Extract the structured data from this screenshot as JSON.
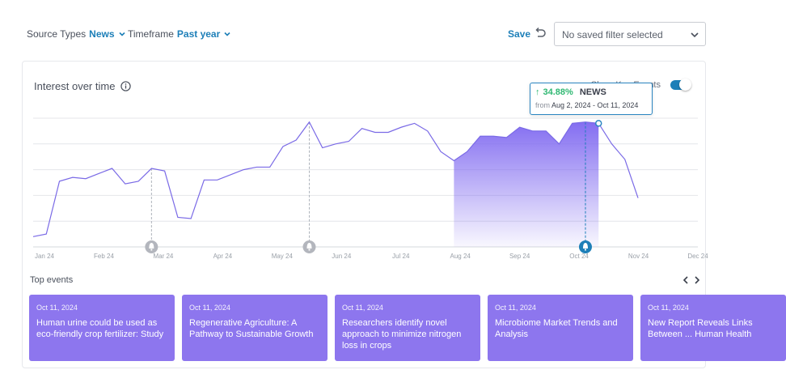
{
  "filters": {
    "source_label": "Source Types",
    "source_value": "News",
    "timeframe_label": "Timeframe",
    "timeframe_value": "Past year"
  },
  "toolbar": {
    "save_label": "Save",
    "saved_filter_placeholder": "No saved filter selected"
  },
  "card": {
    "title": "Interest over time",
    "show_key_events_label": "Show Key Events",
    "show_key_events_on": true
  },
  "tooltip": {
    "change": "34.88%",
    "source": "NEWS",
    "from_label": "from",
    "range": "Aug 2, 2024 - Oct 11, 2024"
  },
  "chart_data": {
    "type": "line",
    "title": "Interest over time",
    "x_ticks": [
      "Jan 24",
      "Feb 24",
      "Mar 24",
      "Apr 24",
      "May 24",
      "Jun 24",
      "Jul 24",
      "Aug 24",
      "Sep 24",
      "Oct 24",
      "Nov 24",
      "Dec 24"
    ],
    "series": [
      {
        "values": [
          8,
          10,
          51,
          54,
          53,
          57,
          61,
          49,
          51,
          61,
          59,
          23,
          22,
          52,
          52,
          56,
          60,
          62,
          62,
          78,
          83,
          97,
          77,
          80,
          82,
          92,
          89,
          89,
          93,
          96,
          90,
          74,
          67,
          74,
          86,
          86,
          85,
          93,
          90,
          90,
          80,
          96,
          97,
          96,
          80,
          68,
          38
        ]
      }
    ],
    "highlight_range": {
      "from_index": 32,
      "to_index": 43
    },
    "event_markers_index": [
      9,
      21,
      42
    ],
    "ylim": [
      0,
      100
    ],
    "grid": true,
    "colors": {
      "line": "#7a6ae6",
      "fill": "#7d66f0",
      "marker": "#b3b6bd",
      "active_marker": "#1d7fb8"
    }
  },
  "events_section": {
    "title": "Top events",
    "items": [
      {
        "date": "Oct 11, 2024",
        "title": "Human urine could be used as eco-friendly crop fertilizer: Study"
      },
      {
        "date": "Oct 11, 2024",
        "title": "Regenerative Agriculture: A Pathway to Sustainable Growth"
      },
      {
        "date": "Oct 11, 2024",
        "title": "Researchers identify novel approach to minimize nitrogen loss in crops"
      },
      {
        "date": "Oct 11, 2024",
        "title": "Microbiome Market Trends and Analysis"
      },
      {
        "date": "Oct 11, 2024",
        "title": "New Report Reveals Links Between ... Human Health"
      }
    ]
  }
}
